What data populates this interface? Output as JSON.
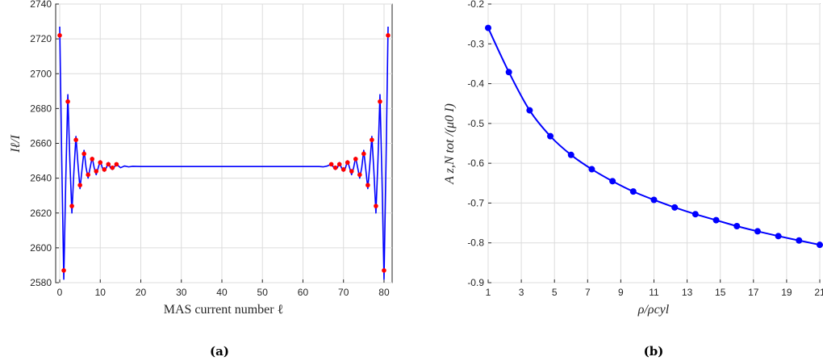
{
  "chart_data": [
    {
      "type": "line",
      "caption": "(a)",
      "xlabel": "MAS current number ℓ",
      "ylabel": "Iℓ/I",
      "xlim": [
        -1,
        82
      ],
      "ylim": [
        2580,
        2740
      ],
      "xticks": [
        0,
        10,
        20,
        30,
        40,
        50,
        60,
        70,
        80
      ],
      "yticks": [
        2580,
        2600,
        2620,
        2640,
        2660,
        2680,
        2700,
        2720,
        2740
      ],
      "grid": true,
      "series": [
        {
          "style": "line",
          "color": "#0000ff",
          "x": [
            0,
            0.5,
            1,
            1.5,
            2,
            2.5,
            3,
            3.5,
            4,
            4.5,
            5,
            5.5,
            6,
            6.5,
            7,
            7.5,
            8,
            8.5,
            9,
            9.5,
            10,
            10.5,
            11,
            11.5,
            12,
            12.5,
            13,
            13.5,
            14,
            15,
            16,
            17,
            18,
            20,
            30,
            40,
            50,
            60,
            64,
            65,
            66,
            67,
            67.5,
            68,
            68.5,
            69,
            69.5,
            70,
            70.5,
            71,
            71.5,
            72,
            72.5,
            73,
            73.5,
            74,
            74.5,
            75,
            75.5,
            76,
            76.5,
            77,
            77.5,
            78,
            78.5,
            79,
            79.5,
            80,
            80.5,
            81
          ],
          "y": [
            2727,
            2650,
            2582,
            2640,
            2688,
            2650,
            2620,
            2644,
            2664,
            2648,
            2634,
            2645,
            2656,
            2646,
            2640,
            2646,
            2652,
            2646,
            2642,
            2646,
            2650,
            2646,
            2644,
            2646,
            2649,
            2646,
            2645,
            2646.5,
            2648,
            2646,
            2647,
            2646.5,
            2646.8,
            2646.7,
            2646.7,
            2646.7,
            2646.7,
            2646.7,
            2646.7,
            2646.5,
            2647,
            2648,
            2646.5,
            2645,
            2646,
            2649,
            2646,
            2644,
            2646,
            2650,
            2646,
            2642,
            2646,
            2652,
            2646,
            2640,
            2646,
            2656,
            2645,
            2634,
            2648,
            2664,
            2644,
            2620,
            2650,
            2688,
            2640,
            2582,
            2650,
            2727
          ]
        },
        {
          "style": "markers",
          "color": "#ff0000",
          "x": [
            0,
            1,
            2,
            3,
            4,
            5,
            6,
            7,
            8,
            9,
            10,
            11,
            12,
            13,
            14,
            67,
            68,
            69,
            70,
            71,
            72,
            73,
            74,
            75,
            76,
            77,
            78,
            79,
            80,
            81
          ],
          "y": [
            2722,
            2587,
            2684,
            2624,
            2662,
            2636,
            2654,
            2642,
            2651,
            2644,
            2649,
            2645,
            2648,
            2646,
            2648,
            2648,
            2646,
            2648,
            2645,
            2649,
            2644,
            2651,
            2642,
            2654,
            2636,
            2662,
            2624,
            2684,
            2587,
            2722
          ]
        }
      ]
    },
    {
      "type": "line",
      "caption": "(b)",
      "xlabel": "ρ/ρcyl",
      "ylabel": "A z,N tot /(μ0 I)",
      "xlim": [
        1,
        21
      ],
      "ylim": [
        -0.9,
        -0.2
      ],
      "xticks": [
        1,
        3,
        5,
        7,
        9,
        11,
        13,
        15,
        17,
        19,
        21
      ],
      "yticks": [
        -0.9,
        -0.8,
        -0.7,
        -0.6,
        -0.5,
        -0.4,
        -0.3,
        -0.2
      ],
      "ytick_labels": [
        "-0.9",
        "-0.8",
        "-0.7",
        "-0.6",
        "-0.5",
        "-0.4",
        "-0.3",
        "-0.2"
      ],
      "grid": true,
      "series": [
        {
          "style": "line+markers",
          "color": "#0000ff",
          "x": [
            1,
            2.25,
            3.5,
            4.75,
            6,
            7.25,
            8.5,
            9.75,
            11,
            12.25,
            13.5,
            14.75,
            16,
            17.25,
            18.5,
            19.75,
            21
          ],
          "y": [
            -0.26,
            -0.371,
            -0.467,
            -0.532,
            -0.579,
            -0.615,
            -0.645,
            -0.671,
            -0.692,
            -0.711,
            -0.728,
            -0.743,
            -0.758,
            -0.771,
            -0.783,
            -0.794,
            -0.805
          ]
        }
      ]
    }
  ]
}
